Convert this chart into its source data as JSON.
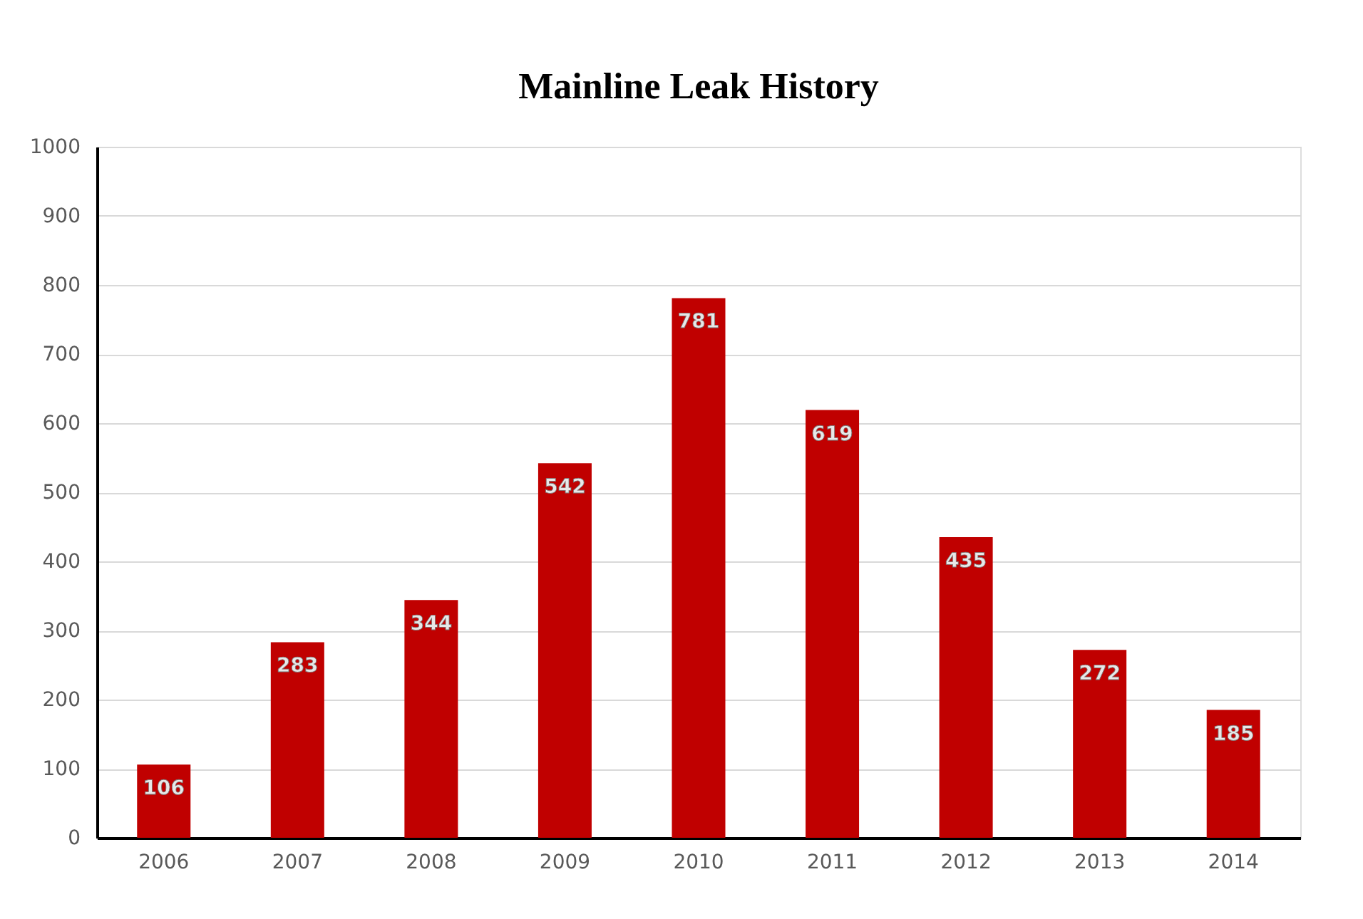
{
  "chart_data": {
    "type": "bar",
    "title": "Mainline Leak History",
    "categories": [
      "2006",
      "2007",
      "2008",
      "2009",
      "2010",
      "2011",
      "2012",
      "2013",
      "2014"
    ],
    "values": [
      106,
      283,
      344,
      542,
      781,
      619,
      435,
      272,
      185
    ],
    "color": "#c00000",
    "ylim": [
      0,
      1000
    ],
    "yticks": [
      0,
      100,
      200,
      300,
      400,
      500,
      600,
      700,
      800,
      900,
      1000
    ],
    "grid": "y",
    "data_labels": true
  }
}
